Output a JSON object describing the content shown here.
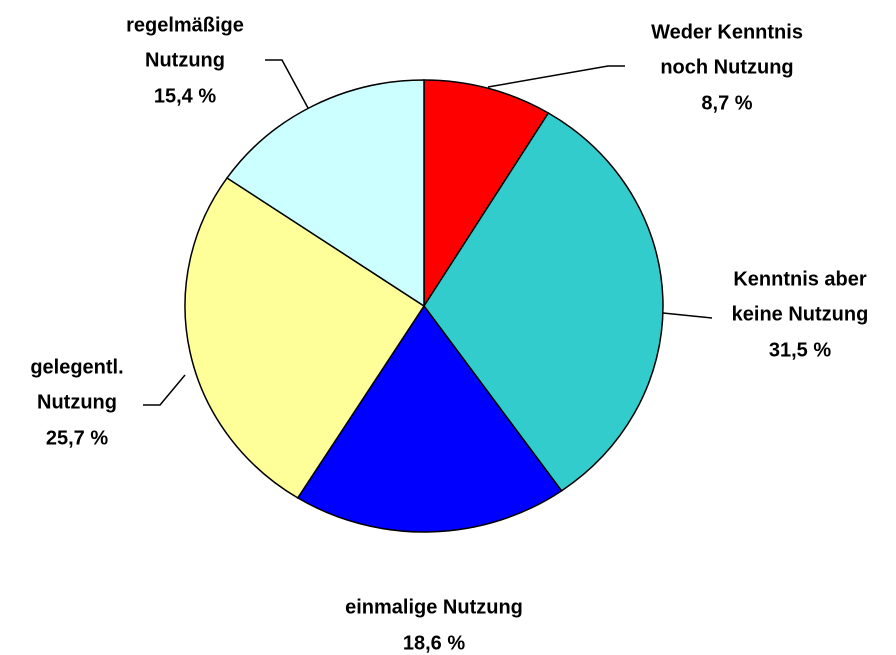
{
  "chart_data": {
    "type": "pie",
    "categories": [
      [
        "Weder Kenntnis",
        "noch Nutzung"
      ],
      [
        "Kenntnis aber",
        "keine Nutzung"
      ],
      [
        "einmalige Nutzung"
      ],
      [
        "gelegentl.",
        "Nutzung"
      ],
      [
        "regelmäßige",
        "Nutzung"
      ]
    ],
    "values": [
      8.7,
      31.5,
      18.6,
      25.7,
      15.4
    ],
    "value_labels": [
      "8,7 %",
      "31,5 %",
      "18,6 %",
      "25,7 %",
      "15,4 %"
    ],
    "colors": [
      "#ff0000",
      "#33cccc",
      "#0000ff",
      "#ffff99",
      "#ccffff"
    ]
  }
}
